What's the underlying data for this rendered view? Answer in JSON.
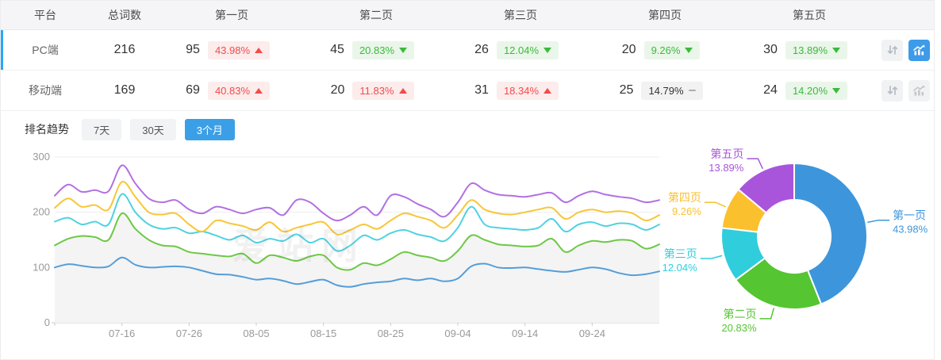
{
  "table": {
    "headers": {
      "platform": "平台",
      "total": "总词数",
      "pages": [
        "第一页",
        "第二页",
        "第三页",
        "第四页",
        "第五页"
      ]
    },
    "rows": [
      {
        "platform": "PC端",
        "total": "216",
        "selected": true,
        "trend_chart_active": true,
        "pages": [
          {
            "count": "95",
            "pct": "43.98%",
            "trend": "up"
          },
          {
            "count": "45",
            "pct": "20.83%",
            "trend": "down"
          },
          {
            "count": "26",
            "pct": "12.04%",
            "trend": "down"
          },
          {
            "count": "20",
            "pct": "9.26%",
            "trend": "down"
          },
          {
            "count": "30",
            "pct": "13.89%",
            "trend": "down"
          }
        ]
      },
      {
        "platform": "移动端",
        "total": "169",
        "selected": false,
        "trend_chart_active": false,
        "pages": [
          {
            "count": "69",
            "pct": "40.83%",
            "trend": "up"
          },
          {
            "count": "20",
            "pct": "11.83%",
            "trend": "up"
          },
          {
            "count": "31",
            "pct": "18.34%",
            "trend": "up"
          },
          {
            "count": "25",
            "pct": "14.79%",
            "trend": "flat"
          },
          {
            "count": "24",
            "pct": "14.20%",
            "trend": "down"
          }
        ]
      }
    ]
  },
  "trend_section": {
    "title": "排名趋势",
    "ranges": [
      {
        "label": "7天",
        "active": false
      },
      {
        "label": "30天",
        "active": false
      },
      {
        "label": "3个月",
        "active": true
      }
    ]
  },
  "watermark": "爱站网",
  "colors": {
    "accent_blue": "#3b9fe8",
    "row_highlight": "#2ba6f5",
    "badge_up_text": "#f34b4b",
    "badge_up_bg": "#fcecec",
    "badge_down_text": "#3cb93c",
    "badge_down_bg": "#eaf6e9",
    "badge_flat_bg": "#f2f2f2",
    "grid": "#eeeeee",
    "axis": "#cccccc",
    "axis_text": "#999999",
    "area_fill": "#f4f4f4"
  },
  "chart_data": [
    {
      "type": "line",
      "title": "排名趋势 (3个月)",
      "ylim": [
        0,
        300
      ],
      "y_ticks": [
        0,
        100,
        200,
        300
      ],
      "x_range_days": [
        0,
        90
      ],
      "x_tick_days": [
        10,
        20,
        30,
        40,
        50,
        60,
        70,
        80
      ],
      "x_tick_labels": [
        "07-16",
        "07-26",
        "08-05",
        "08-15",
        "08-25",
        "09-04",
        "09-14",
        "09-24"
      ],
      "grid": true,
      "sample_step_days": 2,
      "series": [
        {
          "name": "第一页",
          "color": "#549ed9",
          "area": false,
          "values": [
            100,
            106,
            103,
            100,
            102,
            118,
            105,
            100,
            101,
            102,
            100,
            94,
            88,
            87,
            83,
            78,
            80,
            76,
            70,
            74,
            78,
            68,
            65,
            70,
            73,
            75,
            80,
            77,
            80,
            75,
            80,
            102,
            107,
            100,
            99,
            100,
            97,
            94,
            92,
            96,
            100,
            97,
            90,
            86,
            88,
            93
          ]
        },
        {
          "name": "第二页",
          "color": "#6ec846",
          "area": true,
          "area_color": "#f4f4f4",
          "values": [
            140,
            152,
            157,
            155,
            150,
            198,
            170,
            150,
            140,
            138,
            128,
            125,
            122,
            120,
            125,
            108,
            122,
            118,
            112,
            120,
            122,
            100,
            96,
            108,
            104,
            115,
            128,
            122,
            118,
            112,
            130,
            158,
            150,
            142,
            140,
            138,
            140,
            152,
            128,
            140,
            148,
            146,
            150,
            148,
            134,
            142
          ]
        },
        {
          "name": "第三页",
          "color": "#50d2e1",
          "area": false,
          "values": [
            183,
            190,
            178,
            183,
            178,
            233,
            200,
            178,
            170,
            172,
            162,
            165,
            158,
            150,
            158,
            145,
            152,
            148,
            160,
            145,
            152,
            130,
            140,
            158,
            150,
            162,
            168,
            160,
            155,
            148,
            172,
            210,
            178,
            172,
            170,
            168,
            172,
            188,
            165,
            178,
            182,
            175,
            180,
            178,
            168,
            178
          ]
        },
        {
          "name": "第四页",
          "color": "#f8c637",
          "area": false,
          "values": [
            208,
            225,
            210,
            213,
            205,
            255,
            228,
            200,
            196,
            198,
            178,
            165,
            185,
            180,
            175,
            168,
            182,
            165,
            172,
            178,
            182,
            160,
            168,
            178,
            170,
            185,
            198,
            192,
            185,
            172,
            195,
            222,
            205,
            198,
            196,
            200,
            205,
            208,
            188,
            200,
            205,
            200,
            202,
            198,
            185,
            195
          ]
        },
        {
          "name": "第五页",
          "color": "#b270e2",
          "area": false,
          "values": [
            230,
            250,
            237,
            240,
            238,
            285,
            252,
            225,
            218,
            222,
            205,
            198,
            210,
            205,
            198,
            205,
            208,
            195,
            222,
            218,
            198,
            185,
            195,
            210,
            195,
            230,
            228,
            215,
            205,
            192,
            218,
            252,
            240,
            232,
            230,
            228,
            232,
            235,
            218,
            230,
            238,
            232,
            228,
            225,
            218,
            222
          ]
        }
      ]
    },
    {
      "type": "pie",
      "donut": true,
      "start_angle": "top",
      "direction": "clockwise",
      "inner_radius_ratio": 0.5,
      "slices": [
        {
          "label": "第一页",
          "value": 43.98,
          "display": "43.98%",
          "color": "#3d96db"
        },
        {
          "label": "第二页",
          "value": 20.83,
          "display": "20.83%",
          "color": "#55c531"
        },
        {
          "label": "第三页",
          "value": 12.04,
          "display": "12.04%",
          "color": "#30cddc"
        },
        {
          "label": "第四页",
          "value": 9.26,
          "display": "9.26%",
          "color": "#fbc02d"
        },
        {
          "label": "第五页",
          "value": 13.89,
          "display": "13.89%",
          "color": "#a855dc"
        }
      ]
    }
  ]
}
